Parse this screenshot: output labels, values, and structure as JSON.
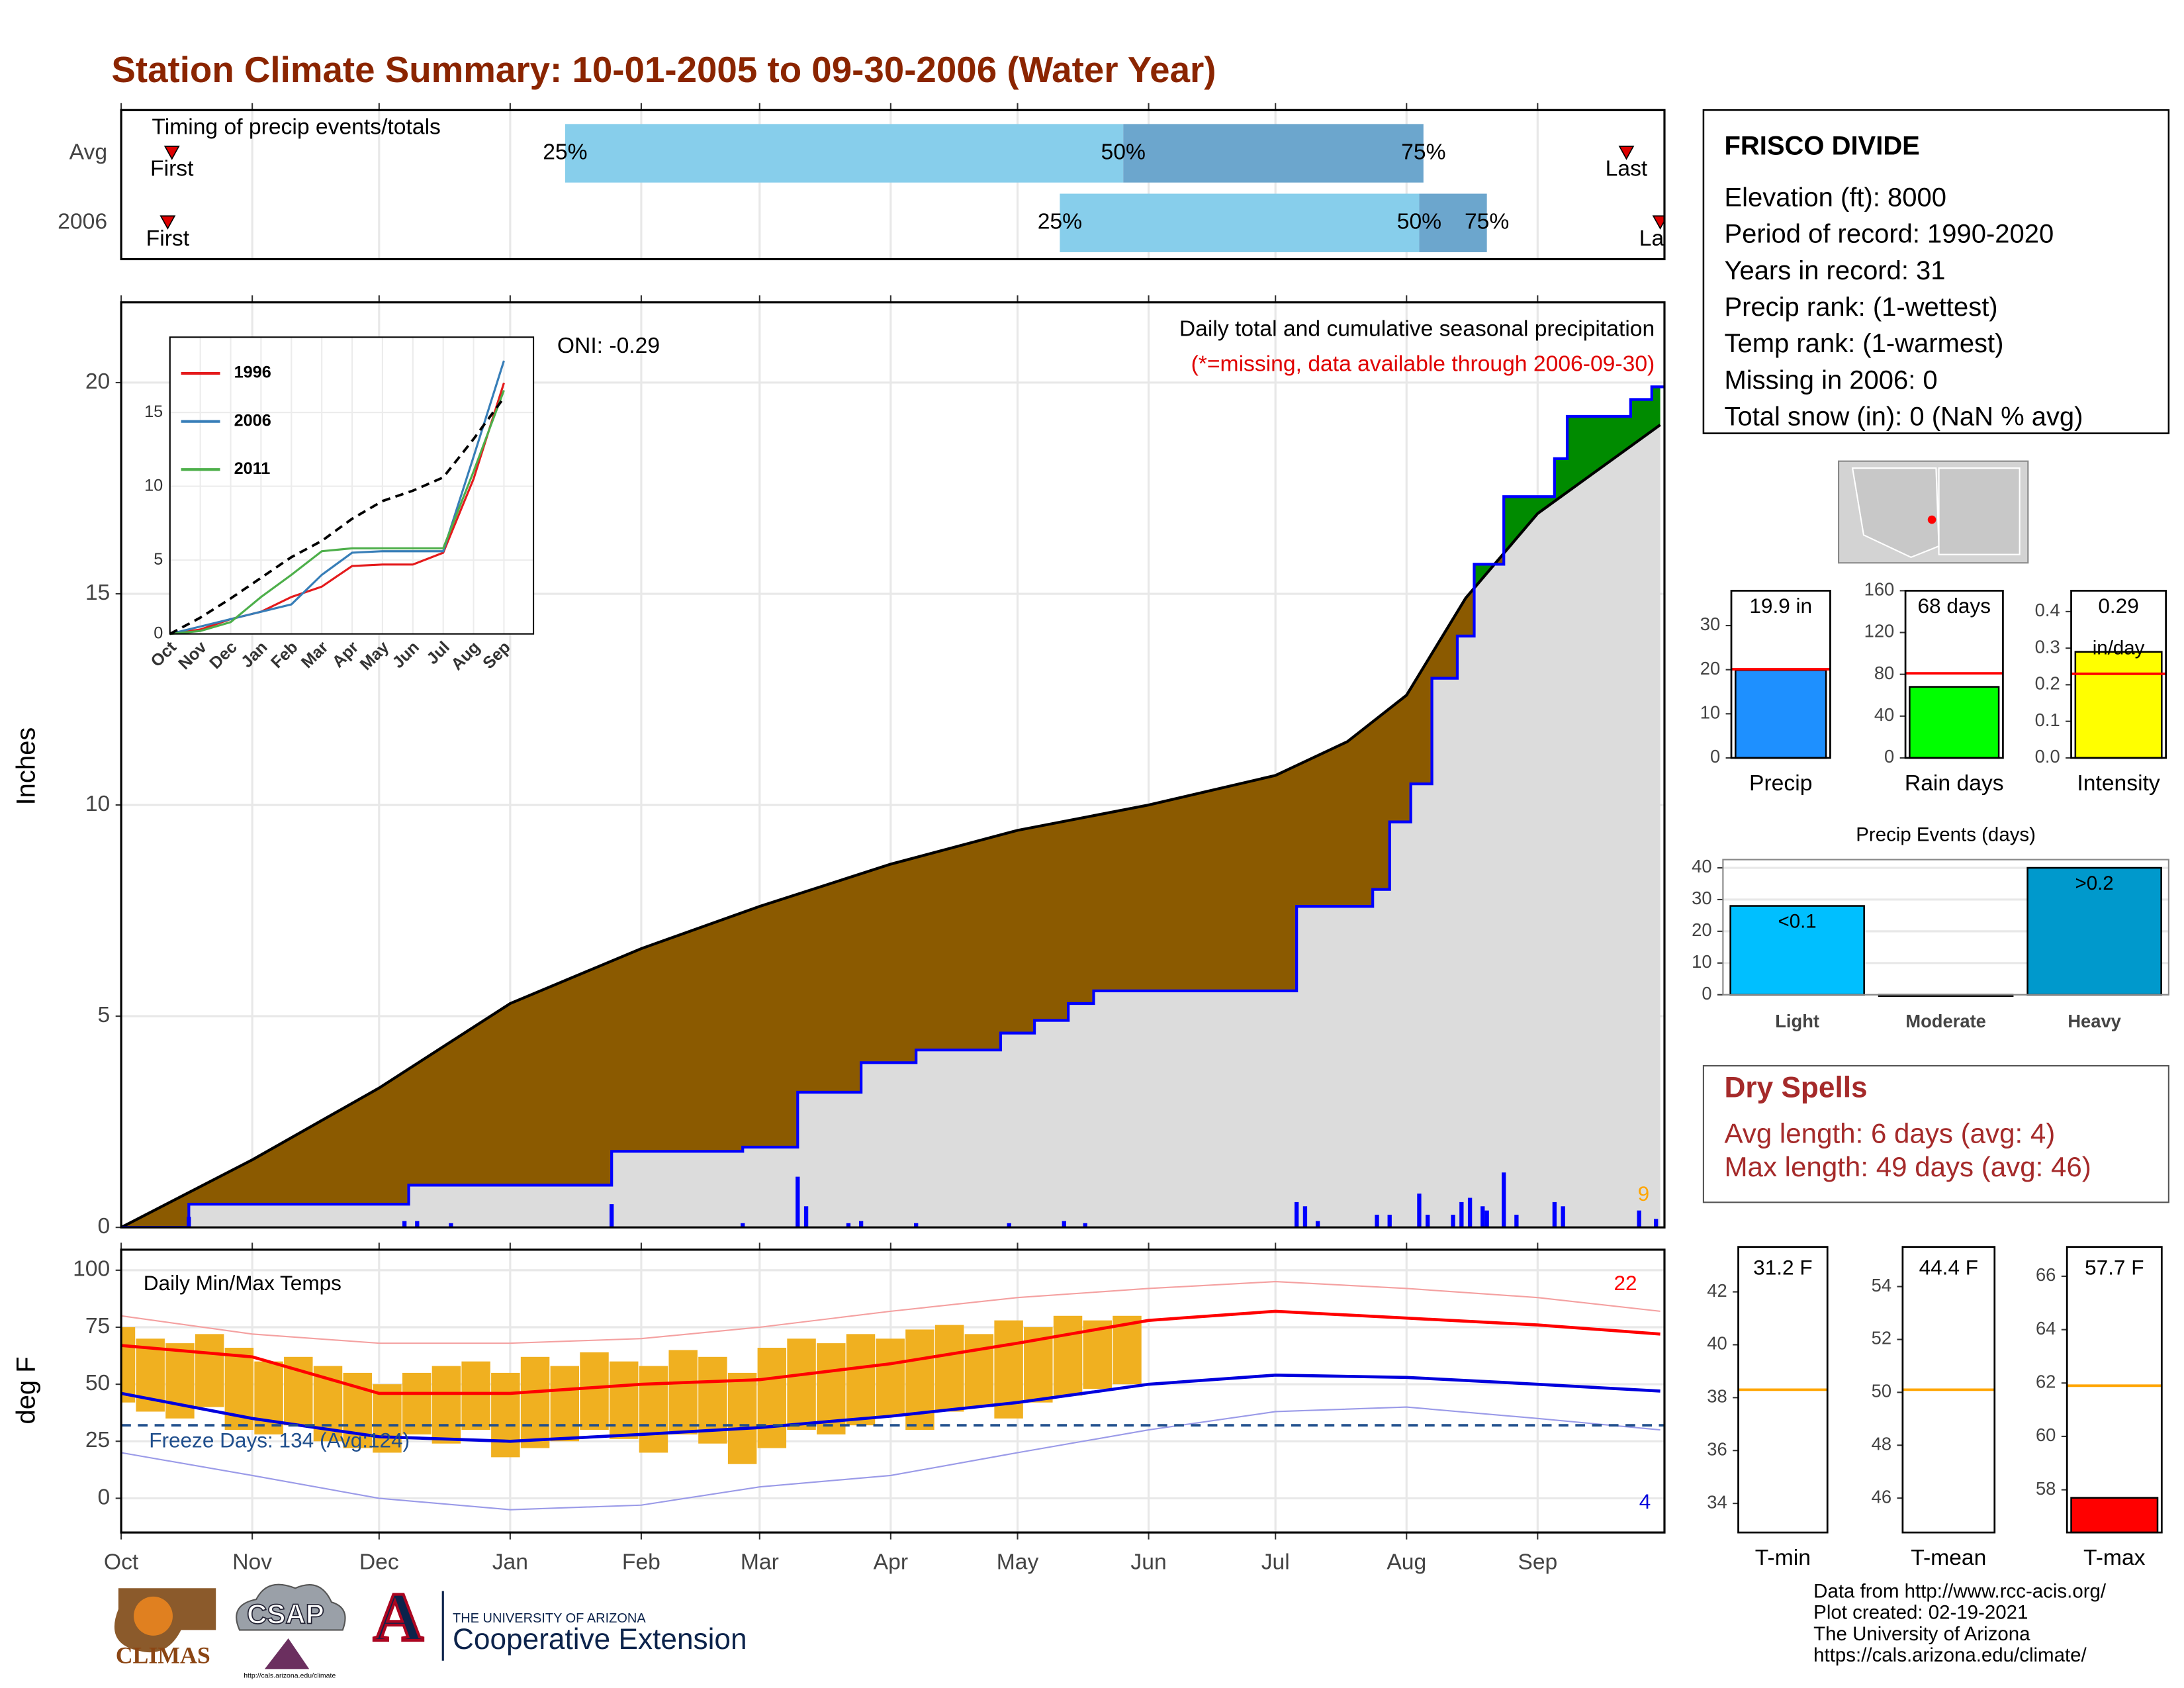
{
  "title": "Station Climate Summary: 10-01-2005 to 09-30-2006 (Water Year)",
  "station": {
    "name": "FRISCO DIVIDE",
    "lines": [
      "Elevation (ft): 8000",
      "Period of record: 1990-2020",
      "Years in record: 31",
      "Precip rank:  (1-wettest)",
      "Temp rank:  (1-warmest)",
      "Missing in 2006: 0",
      "Total snow (in): 0 (NaN % avg)"
    ]
  },
  "dry_spells": {
    "title": "Dry Spells",
    "lines": [
      "Avg length: 6 days (avg: 4)",
      "Max length: 49 days (avg: 46)"
    ]
  },
  "footer": {
    "credits": [
      "Data from http://www.rcc-acis.org/",
      "Plot created: 02-19-2021",
      "The University of Arizona",
      "https://cals.arizona.edu/climate/"
    ],
    "logos": [
      "CLIMAS",
      "CSAP",
      "http://cals.arizona.edu/climate",
      "THE UNIVERSITY OF ARIZONA",
      "Cooperative Extension"
    ]
  },
  "chart_data": [
    {
      "type": "timing",
      "title": "Timing of precip events/totals",
      "categories": [
        "Avg",
        "2006"
      ],
      "xlim": [
        0,
        365
      ],
      "series": [
        {
          "name": "First",
          "values": [
            12,
            11
          ]
        },
        {
          "name": "25%",
          "values": [
            105,
            222
          ]
        },
        {
          "name": "50%",
          "values": [
            237,
            307
          ]
        },
        {
          "name": "75%",
          "values": [
            308,
            323
          ]
        },
        {
          "name": "Last",
          "values": [
            356,
            364
          ]
        }
      ],
      "segment_colors": [
        "#87ceeb",
        "#6ca6cd"
      ],
      "marker_color": "#dd0000"
    },
    {
      "type": "cumulative",
      "title": "Daily total and cumulative seasonal precipitation",
      "subtitle": "(*=missing, data available through 2006-09-30)",
      "annotation": "ONI: -0.29",
      "ylabel": "Inches",
      "ylim": [
        0,
        21.9
      ],
      "yticks": [
        0,
        5,
        10,
        15,
        20
      ],
      "xlim": [
        0,
        365
      ],
      "series": [
        {
          "color": "#000000",
          "x": [
            0,
            31,
            61,
            92,
            123,
            151,
            182,
            212,
            243,
            273,
            290,
            304,
            318,
            335,
            364
          ],
          "values": [
            0,
            1.6,
            3.3,
            5.3,
            6.6,
            7.6,
            8.6,
            9.4,
            10.0,
            10.7,
            11.5,
            12.6,
            14.9,
            16.9,
            19.0
          ]
        },
        {
          "color": "#0000ff",
          "step": true,
          "x": [
            0,
            16,
            68,
            116,
            147,
            160,
            175,
            188,
            208,
            216,
            224,
            230,
            278,
            296,
            300,
            305,
            310,
            316,
            320,
            327,
            339,
            342,
            357,
            362
          ],
          "values": [
            0,
            0.55,
            1.0,
            1.8,
            1.9,
            3.2,
            3.9,
            4.2,
            4.6,
            4.9,
            5.3,
            5.6,
            7.6,
            8.0,
            9.6,
            10.5,
            13.0,
            14.0,
            15.7,
            17.3,
            18.2,
            19.2,
            19.6,
            19.9
          ]
        }
      ],
      "bars": {
        "color": "#0000ff",
        "x": [
          16,
          67,
          70,
          78,
          116,
          147,
          160,
          162,
          172,
          175,
          188,
          210,
          223,
          228,
          278,
          280,
          283,
          297,
          300,
          307,
          309,
          315,
          317,
          319,
          322,
          323,
          327,
          330,
          339,
          341,
          359,
          363
        ],
        "values": [
          0.25,
          0.15,
          0.15,
          0.1,
          0.55,
          0.1,
          1.2,
          0.5,
          0.1,
          0.15,
          0.1,
          0.1,
          0.15,
          0.1,
          0.6,
          0.5,
          0.15,
          0.3,
          0.3,
          0.8,
          0.3,
          0.3,
          0.6,
          0.7,
          0.5,
          0.4,
          1.3,
          0.3,
          0.6,
          0.5,
          0.4,
          0.2
        ]
      },
      "bar_count": 9,
      "fill_colors": [
        "#dcdcdc",
        "#8b5a00",
        "#008b00"
      ]
    },
    {
      "type": "line",
      "categories": [
        "Oct",
        "Nov",
        "Dec",
        "Jan",
        "Feb",
        "Mar",
        "Apr",
        "May",
        "Jun",
        "Jul",
        "Aug",
        "Sep"
      ],
      "ylim": [
        0,
        20.1
      ],
      "yticks": [
        0,
        5,
        10,
        15
      ],
      "series": [
        {
          "name": "1996",
          "color": "#e41a1c",
          "values": [
            0,
            0.3,
            1.0,
            1.5,
            2.5,
            3.2,
            4.6,
            4.7,
            4.7,
            5.5,
            10.5,
            17.0
          ]
        },
        {
          "name": "2006",
          "color": "#377eb8",
          "values": [
            0,
            0.5,
            1.0,
            1.5,
            2.0,
            4.0,
            5.5,
            5.6,
            5.6,
            5.6,
            12.0,
            18.5
          ]
        },
        {
          "name": "2011",
          "color": "#4daf4a",
          "values": [
            0,
            0.2,
            0.8,
            2.5,
            4.0,
            5.6,
            5.8,
            5.8,
            5.8,
            5.8,
            11.0,
            16.5
          ]
        },
        {
          "color": "#000000",
          "dash": true,
          "values": [
            0,
            1.1,
            2.4,
            3.8,
            5.2,
            6.3,
            7.8,
            9.0,
            9.7,
            10.6,
            13.2,
            16.0
          ]
        }
      ]
    },
    {
      "type": "temps",
      "title": "Daily Min/Max Temps",
      "ylabel": "deg F",
      "ylim": [
        -15,
        109
      ],
      "yticks": [
        0,
        25,
        50,
        75,
        100
      ],
      "xlim": [
        0,
        365
      ],
      "xticks": [
        {
          "value": 0,
          "label": "Oct"
        },
        {
          "value": 31,
          "label": "Nov"
        },
        {
          "value": 61,
          "label": "Dec"
        },
        {
          "value": 92,
          "label": "Jan"
        },
        {
          "value": 123,
          "label": "Feb"
        },
        {
          "value": 151,
          "label": "Mar"
        },
        {
          "value": 182,
          "label": "Apr"
        },
        {
          "value": 212,
          "label": "May"
        },
        {
          "value": 243,
          "label": "Jun"
        },
        {
          "value": 273,
          "label": "Jul"
        },
        {
          "value": 304,
          "label": "Aug"
        },
        {
          "value": 335,
          "label": "Sep"
        }
      ],
      "avg_x": [
        0,
        31,
        61,
        92,
        123,
        151,
        182,
        212,
        243,
        273,
        304,
        335,
        364
      ],
      "avg_max": [
        67,
        62,
        46,
        46,
        50,
        52,
        59,
        68,
        78,
        82,
        79,
        76,
        72
      ],
      "avg_min": [
        46,
        35,
        27,
        25,
        28,
        31,
        36,
        42,
        50,
        54,
        53,
        50,
        47
      ],
      "record_max": [
        80,
        72,
        68,
        68,
        70,
        75,
        82,
        88,
        92,
        95,
        92,
        88,
        82
      ],
      "record_min": [
        20,
        10,
        0,
        -5,
        -3,
        5,
        10,
        20,
        30,
        38,
        40,
        35,
        30
      ],
      "obs_x": [
        0,
        7,
        14,
        21,
        28,
        35,
        42,
        49,
        56,
        63,
        70,
        77,
        84,
        91,
        98,
        105,
        112,
        119,
        126,
        133,
        140,
        147,
        154,
        161,
        168,
        175,
        182,
        189,
        196,
        203,
        210,
        217,
        224,
        231,
        238
      ],
      "obs_min": [
        42,
        38,
        35,
        40,
        30,
        28,
        32,
        25,
        22,
        20,
        28,
        24,
        30,
        18,
        22,
        25,
        30,
        26,
        20,
        28,
        24,
        15,
        22,
        30,
        28,
        32,
        36,
        30,
        38,
        40,
        35,
        42,
        45,
        48,
        50
      ],
      "obs_max": [
        75,
        70,
        68,
        72,
        66,
        60,
        62,
        58,
        55,
        50,
        55,
        58,
        60,
        55,
        62,
        58,
        64,
        60,
        58,
        65,
        62,
        55,
        66,
        70,
        68,
        72,
        70,
        74,
        76,
        72,
        78,
        75,
        80,
        78,
        80
      ],
      "obs_color": "#f0b020",
      "max_color": "#ff0000",
      "min_color": "#0000dd",
      "freeze_line": 32,
      "freeze_label": "Freeze Days: 134 (Avg:124)",
      "max_count": 22,
      "min_count": 4
    },
    {
      "type": "summary-bar",
      "value": 19.9,
      "value_label": "19.9 in",
      "average": 20.1,
      "average_color": "#ff0000",
      "xlabel": "Precip",
      "color": "#1e90ff",
      "ylim": [
        0,
        37.9
      ],
      "yticks": [
        0,
        10,
        20,
        30
      ]
    },
    {
      "type": "summary-bar",
      "value": 68,
      "value_label": "68 days",
      "average": 81,
      "average_color": "#ff0000",
      "xlabel": "Rain days",
      "color": "#00ff00",
      "ylim": [
        0,
        160
      ],
      "yticks": [
        0,
        40,
        80,
        120,
        160
      ]
    },
    {
      "type": "summary-bar",
      "value": 0.29,
      "value_label": "0.29",
      "unit_label": "in/day",
      "average": 0.23,
      "average_color": "#ff0000",
      "xlabel": "Intensity",
      "color": "#ffff00",
      "ylim": [
        0,
        0.457
      ],
      "yticks": [
        {
          "value": 0,
          "label": "0.0"
        },
        0.1,
        0.2,
        0.3,
        0.4
      ]
    },
    {
      "type": "bar",
      "title": "Precip Events (days)",
      "categories": [
        "Light",
        "Moderate",
        "Heavy"
      ],
      "values": [
        28,
        0,
        40
      ],
      "value_labels": [
        "<0.1",
        null,
        ">0.2"
      ],
      "colors": [
        "#00bfff",
        "#3aa0d0",
        "#0099cc"
      ],
      "ylim": [
        0,
        42.6
      ],
      "yticks": [
        0,
        10,
        20,
        30,
        40
      ],
      "grid": true
    },
    {
      "type": "summary-bar",
      "value": 31.2,
      "value_label": "31.2 F",
      "average": 38.3,
      "average_color": "#ffa500",
      "xlabel": "T-min",
      "color": "#ff0000",
      "ylim": [
        32.9,
        43.7
      ],
      "yticks": [
        34,
        36,
        38,
        40,
        42
      ]
    },
    {
      "type": "summary-bar",
      "value": 44.4,
      "value_label": "44.4 F",
      "average": 50.1,
      "average_color": "#ffa500",
      "xlabel": "T-mean",
      "color": "#ff0000",
      "ylim": [
        44.7,
        55.5
      ],
      "yticks": [
        46,
        48,
        50,
        52,
        54
      ]
    },
    {
      "type": "summary-bar",
      "value": 57.7,
      "value_label": "57.7 F",
      "average": 61.9,
      "average_color": "#ffa500",
      "xlabel": "T-max",
      "color": "#ff0000",
      "ylim": [
        56.4,
        67.1
      ],
      "yticks": [
        58,
        60,
        62,
        64,
        66
      ]
    }
  ]
}
